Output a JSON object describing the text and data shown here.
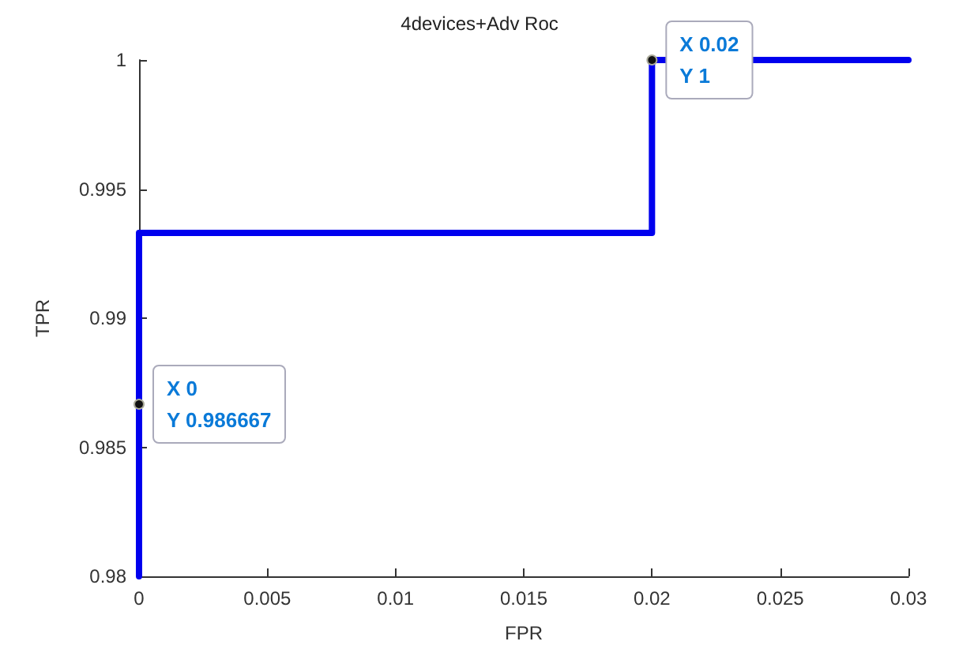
{
  "chart_data": {
    "type": "line",
    "title": "4devices+Adv Roc",
    "xlabel": "FPR",
    "ylabel": "TPR",
    "x": [
      0,
      0,
      0,
      0.02,
      0.02,
      0.03
    ],
    "series": [
      {
        "color": "#0000ee",
        "values": [
          0.98,
          0.986667,
          0.9933,
          0.9933,
          1,
          1
        ]
      }
    ],
    "xlim": [
      0,
      0.03
    ],
    "xticks": [
      0,
      0.005,
      0.01,
      0.015,
      0.02,
      0.025,
      0.03
    ],
    "ylim": [
      0.98,
      1
    ],
    "yticks": [
      0.98,
      0.985,
      0.99,
      0.995,
      1
    ],
    "grid": false,
    "marker": "none",
    "line_style": "solid",
    "annotations": [
      {
        "text": "X 0\nY 0.986667",
        "x": 0,
        "y": 0.986667
      },
      {
        "text": "X 0.02\nY 1",
        "x": 0.02,
        "y": 1
      }
    ]
  }
}
